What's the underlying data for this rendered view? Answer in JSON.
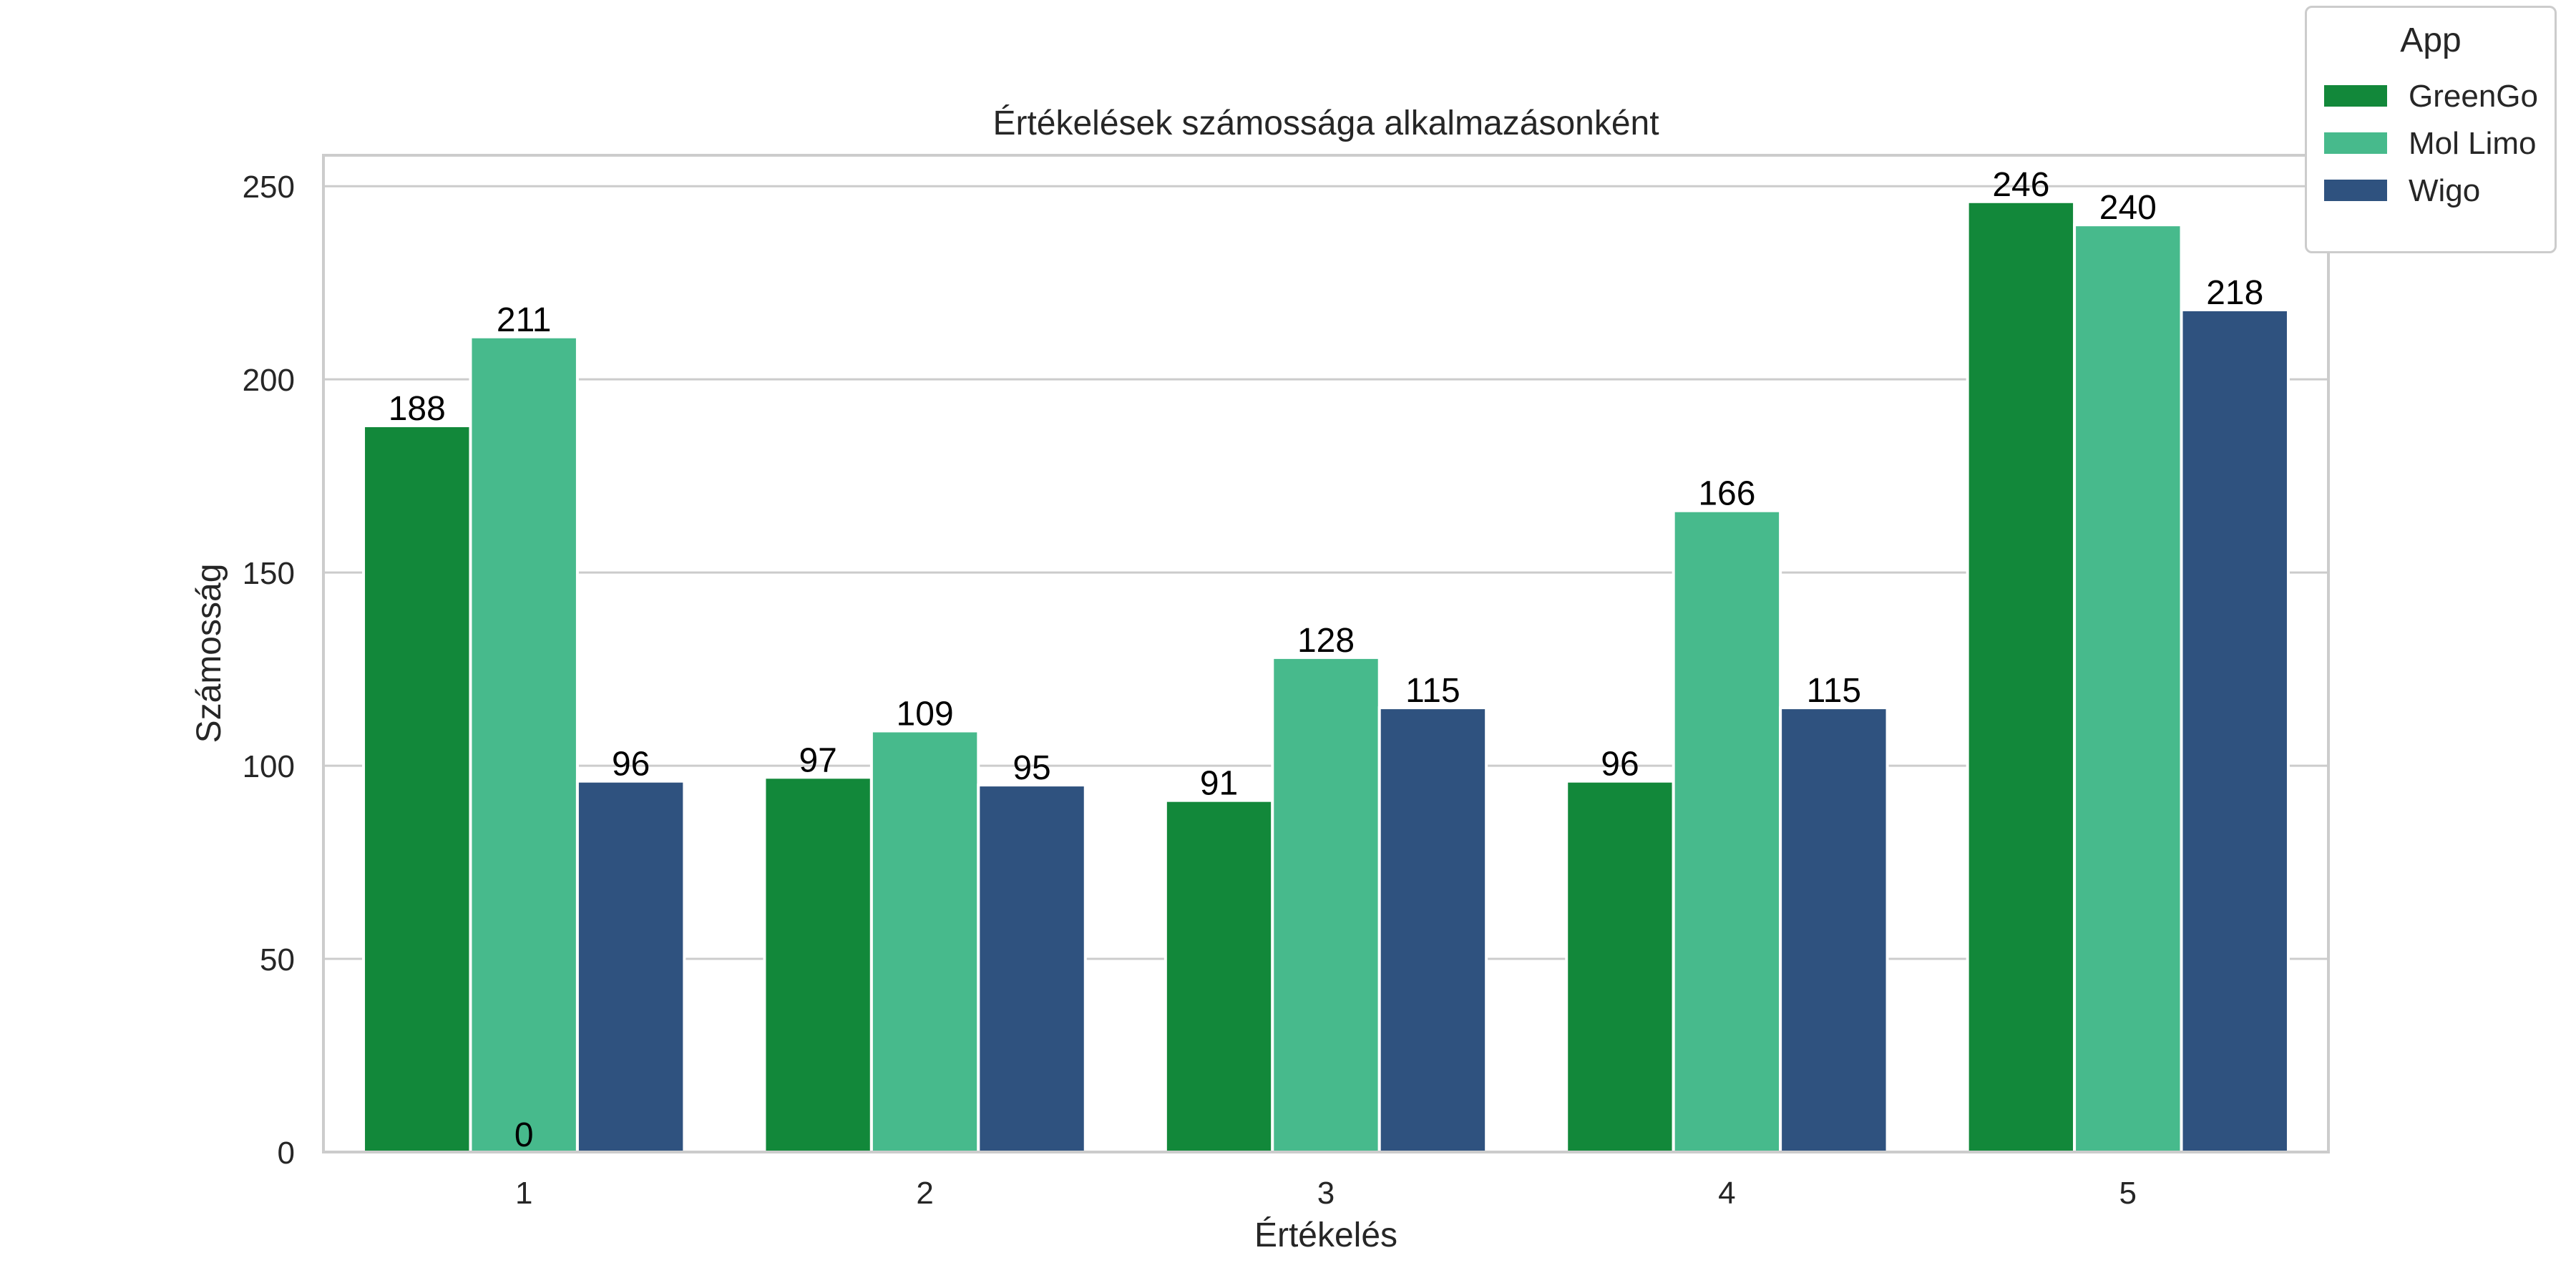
{
  "chart_data": {
    "type": "bar",
    "title": "Értékelések számossága alkalmazásonként",
    "xlabel": "Értékelés",
    "ylabel": "Számosság",
    "categories": [
      "1",
      "2",
      "3",
      "4",
      "5"
    ],
    "ylim": [
      0,
      258
    ],
    "yticks": [
      0,
      50,
      100,
      150,
      200,
      250
    ],
    "grid": true,
    "legend": {
      "title": "App",
      "placement": "top-right, outside"
    },
    "series": [
      {
        "name": "GreenGo",
        "color": "#12883a",
        "values": [
          188,
          97,
          91,
          96,
          246
        ]
      },
      {
        "name": "Mol Limo",
        "color": "#47ba8c",
        "values": [
          211,
          109,
          128,
          166,
          240
        ]
      },
      {
        "name": "Wigo",
        "color": "#2f527f",
        "values": [
          96,
          95,
          115,
          115,
          218
        ]
      }
    ],
    "extra_labels": [
      "0"
    ]
  }
}
